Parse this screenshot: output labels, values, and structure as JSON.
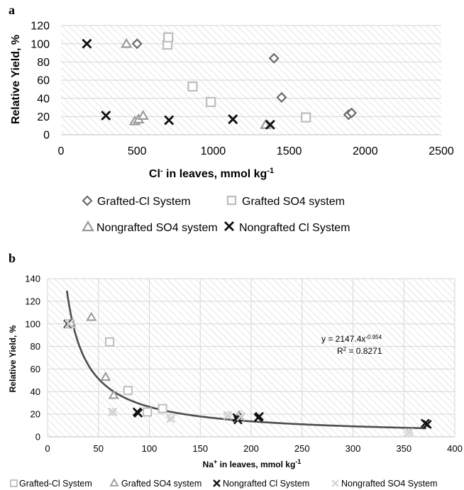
{
  "colors": {
    "grid": "#d6d6d6",
    "hatch": "#e4e4e4",
    "grafted_cl": "#6b6b6b",
    "grafted_so4": "#bdbdbd",
    "nongrafted_so4": "#9a9a9a",
    "nongrafted_cl": "#111111",
    "nongrafted_so4_b": "#d2d2d2",
    "fit_line": "#4d4d4d"
  },
  "chart_data": [
    {
      "panel": "a",
      "type": "scatter",
      "xlabel_main": "Cl",
      "xlabel_sup": "-",
      "xlabel_rest": " in leaves, mmol kg",
      "xlabel_exp": "-1",
      "ylabel": "Relative Yield, %",
      "xlim": [
        0,
        2500
      ],
      "ylim": [
        0,
        120
      ],
      "xticks": [
        "0",
        "500",
        "1000",
        "1500",
        "2000",
        "2500"
      ],
      "yticks": [
        "0",
        "20",
        "40",
        "60",
        "80",
        "100",
        "120"
      ],
      "xtick_values": [
        0,
        500,
        1000,
        1500,
        2000,
        2500
      ],
      "ytick_values": [
        0,
        20,
        40,
        60,
        80,
        100,
        120
      ],
      "grid": true,
      "legend_position": "bottom",
      "series": [
        {
          "name": "Grafted-Cl System",
          "marker": "diamond",
          "color_key": "grafted_cl",
          "points": [
            [
              500,
              100
            ],
            [
              1400,
              84
            ],
            [
              1450,
              41
            ],
            [
              1890,
              22
            ],
            [
              1910,
              24
            ]
          ]
        },
        {
          "name": "Grafted SO4 system",
          "marker": "square",
          "color_key": "grafted_so4",
          "points": [
            [
              700,
              99
            ],
            [
              705,
              107
            ],
            [
              865,
              53
            ],
            [
              985,
              36
            ],
            [
              1610,
              19
            ]
          ]
        },
        {
          "name": "Nongrafted SO4 system",
          "marker": "triangle",
          "color_key": "nongrafted_so4",
          "points": [
            [
              430,
              100
            ],
            [
              485,
              15
            ],
            [
              510,
              17
            ],
            [
              540,
              21
            ],
            [
              1345,
              11
            ]
          ]
        },
        {
          "name": "Nongrafted Cl System",
          "marker": "x",
          "color_key": "nongrafted_cl",
          "points": [
            [
              170,
              100
            ],
            [
              295,
              21
            ],
            [
              710,
              16
            ],
            [
              1130,
              17
            ],
            [
              1375,
              11
            ]
          ]
        }
      ]
    },
    {
      "panel": "b",
      "type": "scatter",
      "xlabel_main": "Na",
      "xlabel_sup": "+",
      "xlabel_rest": " in leaves, mmol kg",
      "xlabel_exp": "-1",
      "ylabel": "Relative Yield, %",
      "xlim": [
        0,
        400
      ],
      "ylim": [
        0,
        140
      ],
      "xticks": [
        "0",
        "50",
        "100",
        "150",
        "200",
        "250",
        "300",
        "350",
        "400"
      ],
      "yticks": [
        "0",
        "20",
        "40",
        "60",
        "80",
        "100",
        "120",
        "140"
      ],
      "xtick_values": [
        0,
        50,
        100,
        150,
        200,
        250,
        300,
        350,
        400
      ],
      "ytick_values": [
        0,
        20,
        40,
        60,
        80,
        100,
        120,
        140
      ],
      "grid": true,
      "legend_position": "bottom",
      "trendline": {
        "equation_prefix": "y = 2147.4x",
        "equation_exp": "-0.954",
        "r2_prefix": "R",
        "r2_sup": "2",
        "r2_rest": " = 0.8271",
        "a": 2147.4,
        "b": -0.954,
        "x_range": [
          19,
          372
        ]
      },
      "series": [
        {
          "name": "Grafted-Cl System",
          "marker": "square",
          "color_key": "grafted_so4",
          "points": [
            [
              22,
              100
            ],
            [
              61,
              84
            ],
            [
              79,
              41
            ],
            [
              98,
              22
            ],
            [
              113,
              25
            ]
          ]
        },
        {
          "name": "Grafted SO4 system",
          "marker": "triangle",
          "color_key": "nongrafted_so4",
          "points": [
            [
              23,
              101
            ],
            [
              43,
              106
            ],
            [
              57,
              53
            ],
            [
              65,
              37
            ],
            [
              188,
              19
            ]
          ]
        },
        {
          "name": "Nongrafted Cl System",
          "marker": "x",
          "color_key": "nongrafted_cl",
          "points": [
            [
              20,
              100
            ],
            [
              88,
              22
            ],
            [
              89,
              21
            ],
            [
              186,
              17
            ],
            [
              187,
              15
            ],
            [
              207,
              17
            ],
            [
              208,
              18
            ],
            [
              371,
              12
            ],
            [
              373,
              11
            ]
          ]
        },
        {
          "name": "Nongrafted SO4 System",
          "marker": "x",
          "color_key": "nongrafted_so4_b",
          "points": [
            [
              21,
              100
            ],
            [
              64,
              22
            ],
            [
              121,
              16
            ],
            [
              177,
              19
            ],
            [
              190,
              18
            ],
            [
              355,
              4
            ]
          ]
        }
      ],
      "extra_diamonds": [
        [
          64,
          22
        ],
        [
          121,
          17
        ],
        [
          177,
          19
        ],
        [
          190,
          20
        ],
        [
          355,
          4
        ]
      ]
    }
  ]
}
